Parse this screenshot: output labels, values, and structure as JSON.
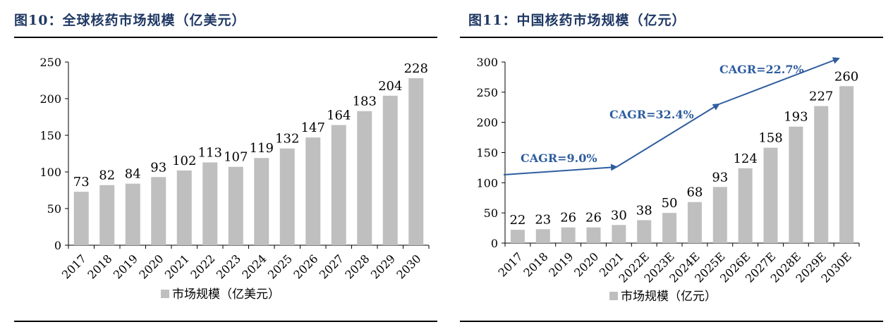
{
  "left": {
    "title": "图10：全球核药市场规模（亿美元）",
    "legend": "市场规模（亿美元）",
    "chart_data": {
      "type": "bar",
      "categories": [
        "2017",
        "2018",
        "2019",
        "2020",
        "2021",
        "2022",
        "2023",
        "2024",
        "2025",
        "2026",
        "2027",
        "2028",
        "2029",
        "2030"
      ],
      "series": [
        {
          "name": "市场规模（亿美元）",
          "values": [
            73,
            82,
            84,
            93,
            102,
            113,
            107,
            119,
            132,
            147,
            164,
            183,
            204,
            228
          ]
        }
      ],
      "ylim": [
        0,
        250
      ],
      "yticks": [
        0,
        50,
        100,
        150,
        200,
        250
      ],
      "bar_color": "#bfbfbf"
    }
  },
  "right": {
    "title": "图11：中国核药市场规模（亿元）",
    "legend": "市场规模（亿元）",
    "chart_data": {
      "type": "bar",
      "categories": [
        "2017",
        "2018",
        "2019",
        "2020",
        "2021",
        "2022E",
        "2023E",
        "2024E",
        "2025E",
        "2026E",
        "2027E",
        "2028E",
        "2029E",
        "2030E"
      ],
      "series": [
        {
          "name": "市场规模（亿元）",
          "values": [
            22,
            23,
            26,
            26,
            30,
            38,
            50,
            68,
            93,
            124,
            158,
            193,
            227,
            260
          ]
        }
      ],
      "ylim": [
        0,
        300
      ],
      "yticks": [
        0,
        50,
        100,
        150,
        200,
        250,
        300
      ],
      "bar_color": "#bfbfbf",
      "annotations": [
        {
          "text": "CAGR=9.0%"
        },
        {
          "text": "CAGR=32.4%"
        },
        {
          "text": "CAGR=22.7%"
        }
      ],
      "arrow_color": "#2e5d9f"
    }
  }
}
